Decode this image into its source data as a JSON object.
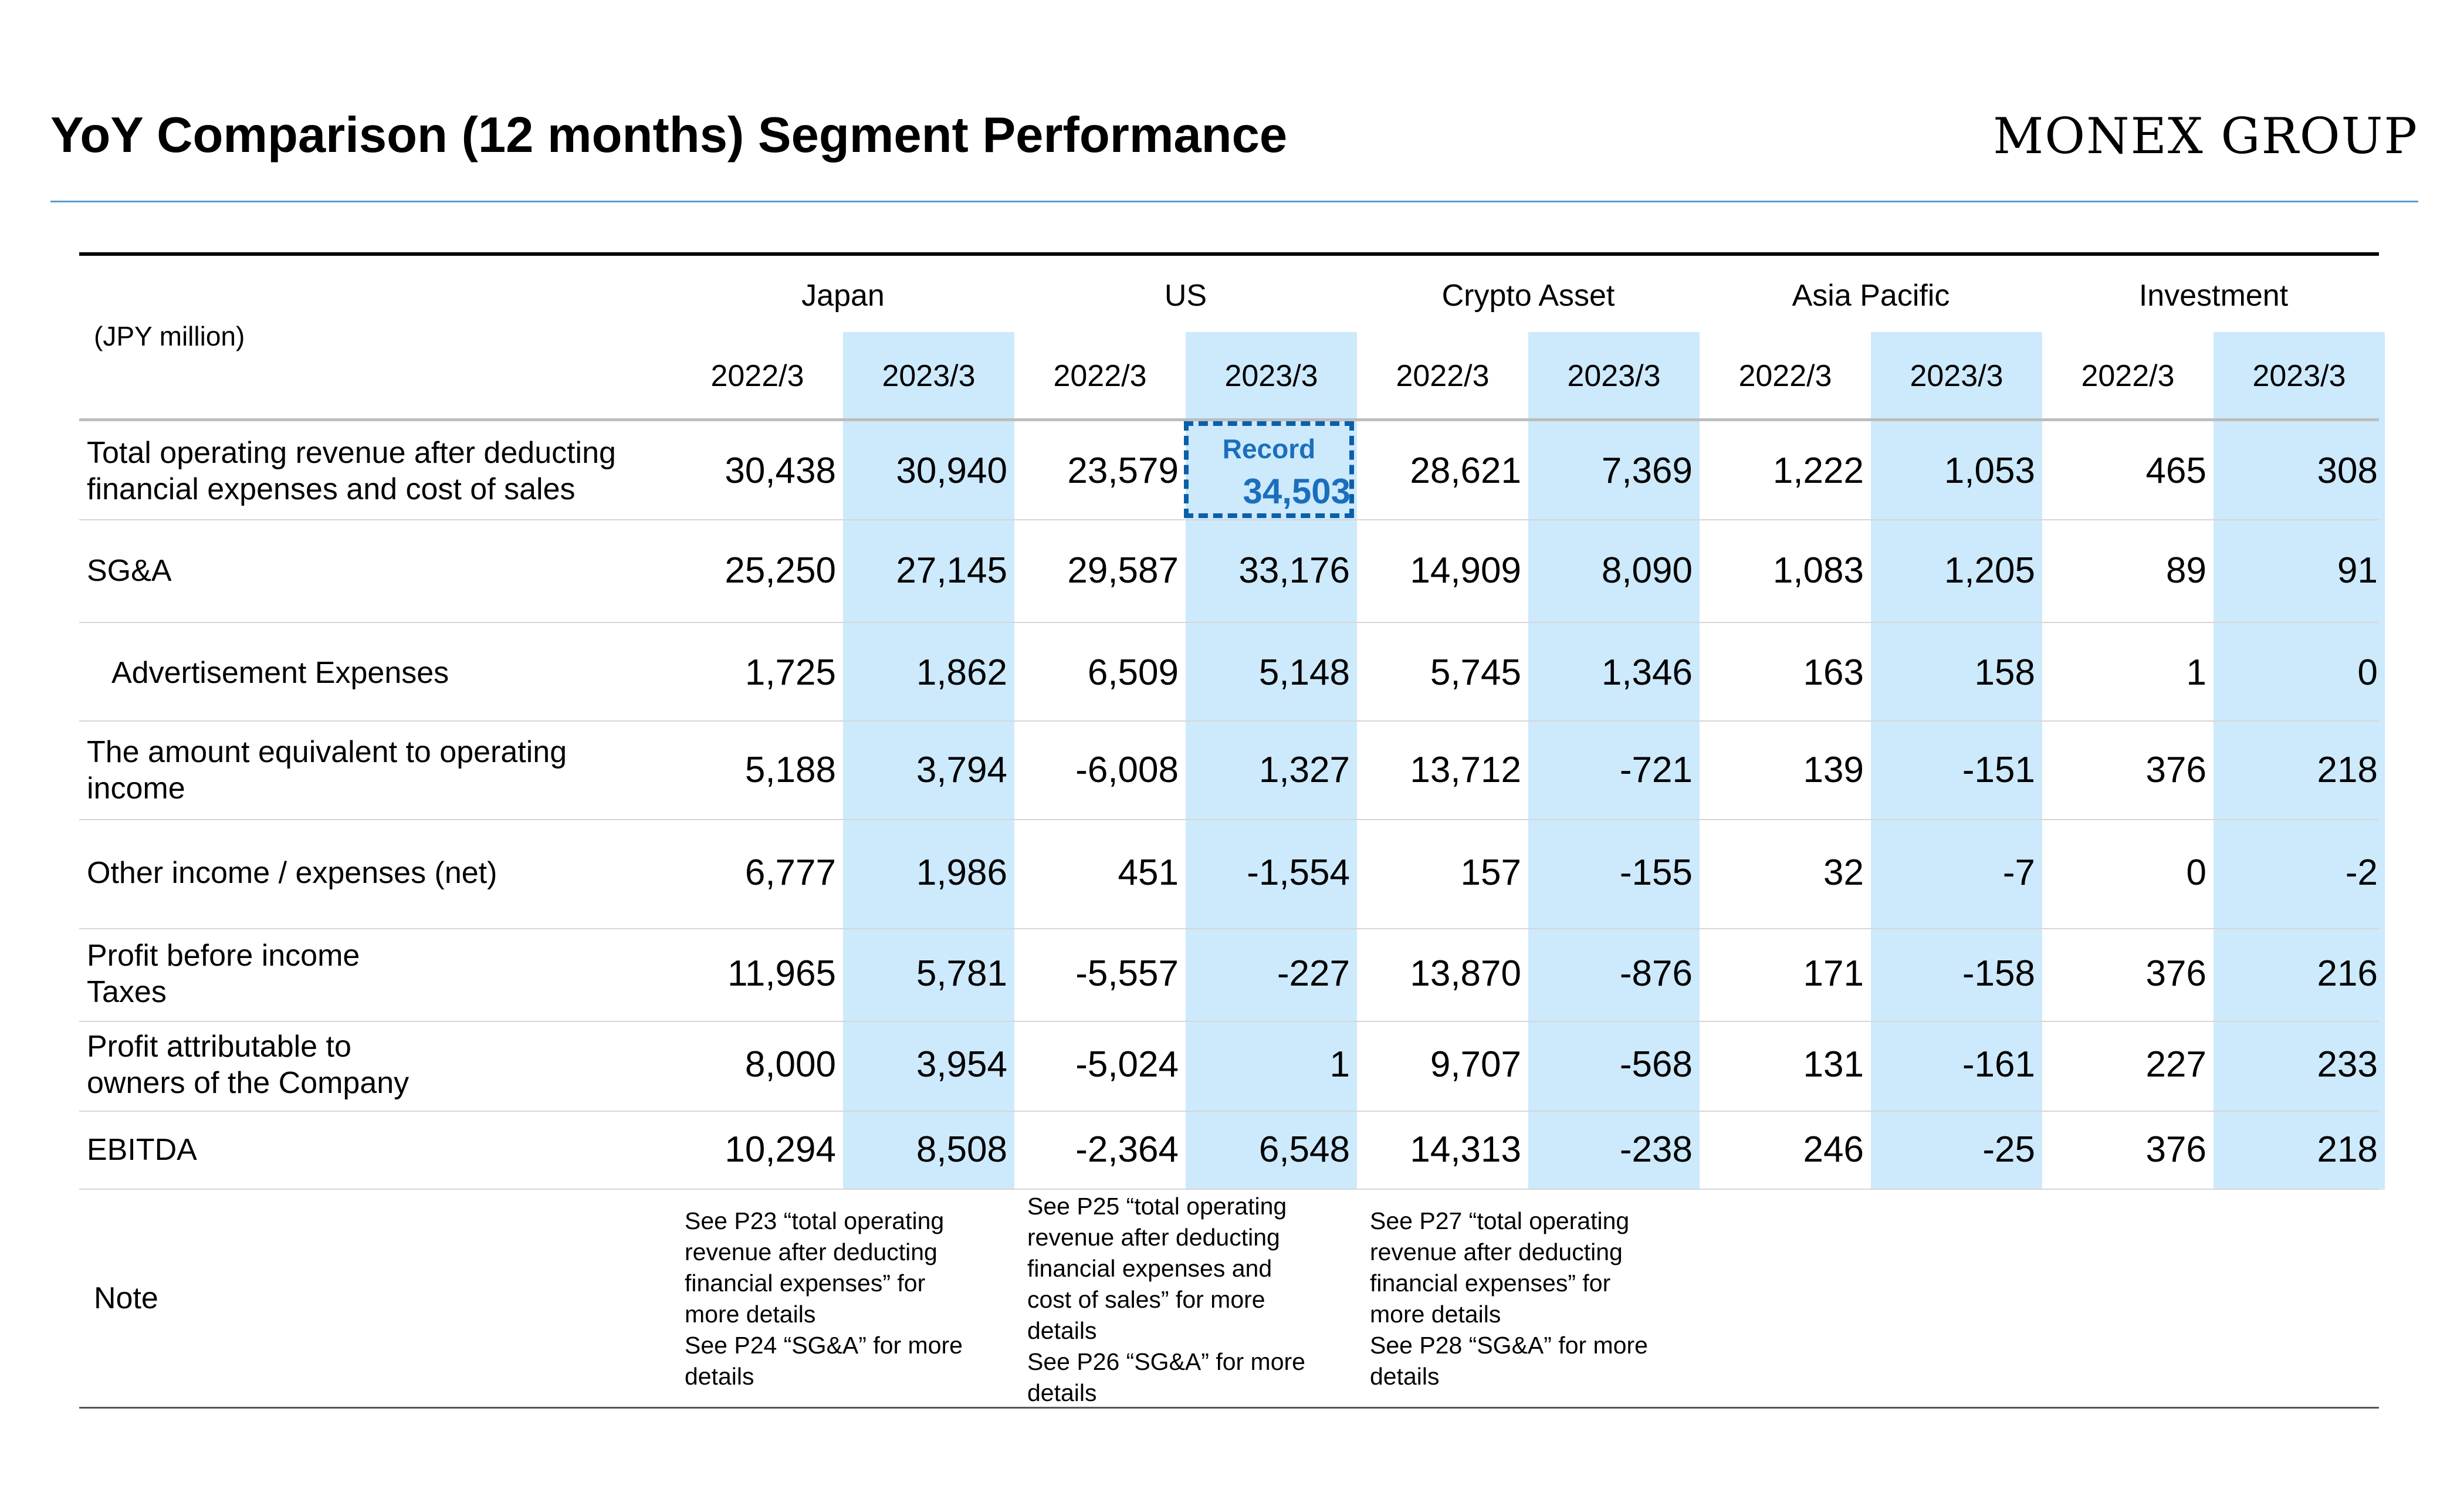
{
  "title": "YoY Comparison (12 months) Segment Performance",
  "logo": "MONEX GROUP",
  "unit": "(JPY million)",
  "segments": [
    "Japan",
    "US",
    "Crypto Asset",
    "Asia Pacific",
    "Investment"
  ],
  "years": [
    "2022/3",
    "2023/3"
  ],
  "rows": [
    {
      "label": "Total operating revenue after deducting\nfinancial expenses and cost of sales",
      "values": [
        "30,438",
        "30,940",
        "23,579",
        "",
        "28,621",
        "7,369",
        "1,222",
        "1,053",
        "465",
        "308"
      ]
    },
    {
      "label": "SG&A",
      "values": [
        "25,250",
        "27,145",
        "29,587",
        "33,176",
        "14,909",
        "8,090",
        "1,083",
        "1,205",
        "89",
        "91"
      ]
    },
    {
      "label": "Advertisement Expenses",
      "values": [
        "1,725",
        "1,862",
        "6,509",
        "5,148",
        "5,745",
        "1,346",
        "163",
        "158",
        "1",
        "0"
      ]
    },
    {
      "label": "The amount equivalent to operating\nincome",
      "values": [
        "5,188",
        "3,794",
        "-6,008",
        "1,327",
        "13,712",
        "-721",
        "139",
        "-151",
        "376",
        "218"
      ]
    },
    {
      "label": "Other income / expenses (net)",
      "values": [
        "6,777",
        "1,986",
        "451",
        "-1,554",
        "157",
        "-155",
        "32",
        "-7",
        "0",
        "-2"
      ]
    },
    {
      "label": "Profit before income\nTaxes",
      "values": [
        "11,965",
        "5,781",
        "-5,557",
        "-227",
        "13,870",
        "-876",
        "171",
        "-158",
        "376",
        "216"
      ]
    },
    {
      "label": "Profit attributable to\nowners of the Company",
      "values": [
        "8,000",
        "3,954",
        "-5,024",
        "1",
        "9,707",
        "-568",
        "131",
        "-161",
        "227",
        "233"
      ]
    },
    {
      "label": "EBITDA",
      "values": [
        "10,294",
        "8,508",
        "-2,364",
        "6,548",
        "14,313",
        "-238",
        "246",
        "-25",
        "376",
        "218"
      ]
    }
  ],
  "record": {
    "label": "Record",
    "value": "34,503"
  },
  "note_label": "Note",
  "notes": [
    "See P23 “total operating\nrevenue after deducting\nfinancial expenses” for\nmore details\nSee P24 “SG&A” for more\ndetails",
    "See P25 “total operating\nrevenue after deducting\nfinancial expenses and\ncost of sales” for more\ndetails\nSee P26 “SG&A” for more\ndetails",
    "See P27 “total operating\nrevenue after deducting\nfinancial expenses” for\nmore details\nSee P28 “SG&A” for more\ndetails"
  ]
}
